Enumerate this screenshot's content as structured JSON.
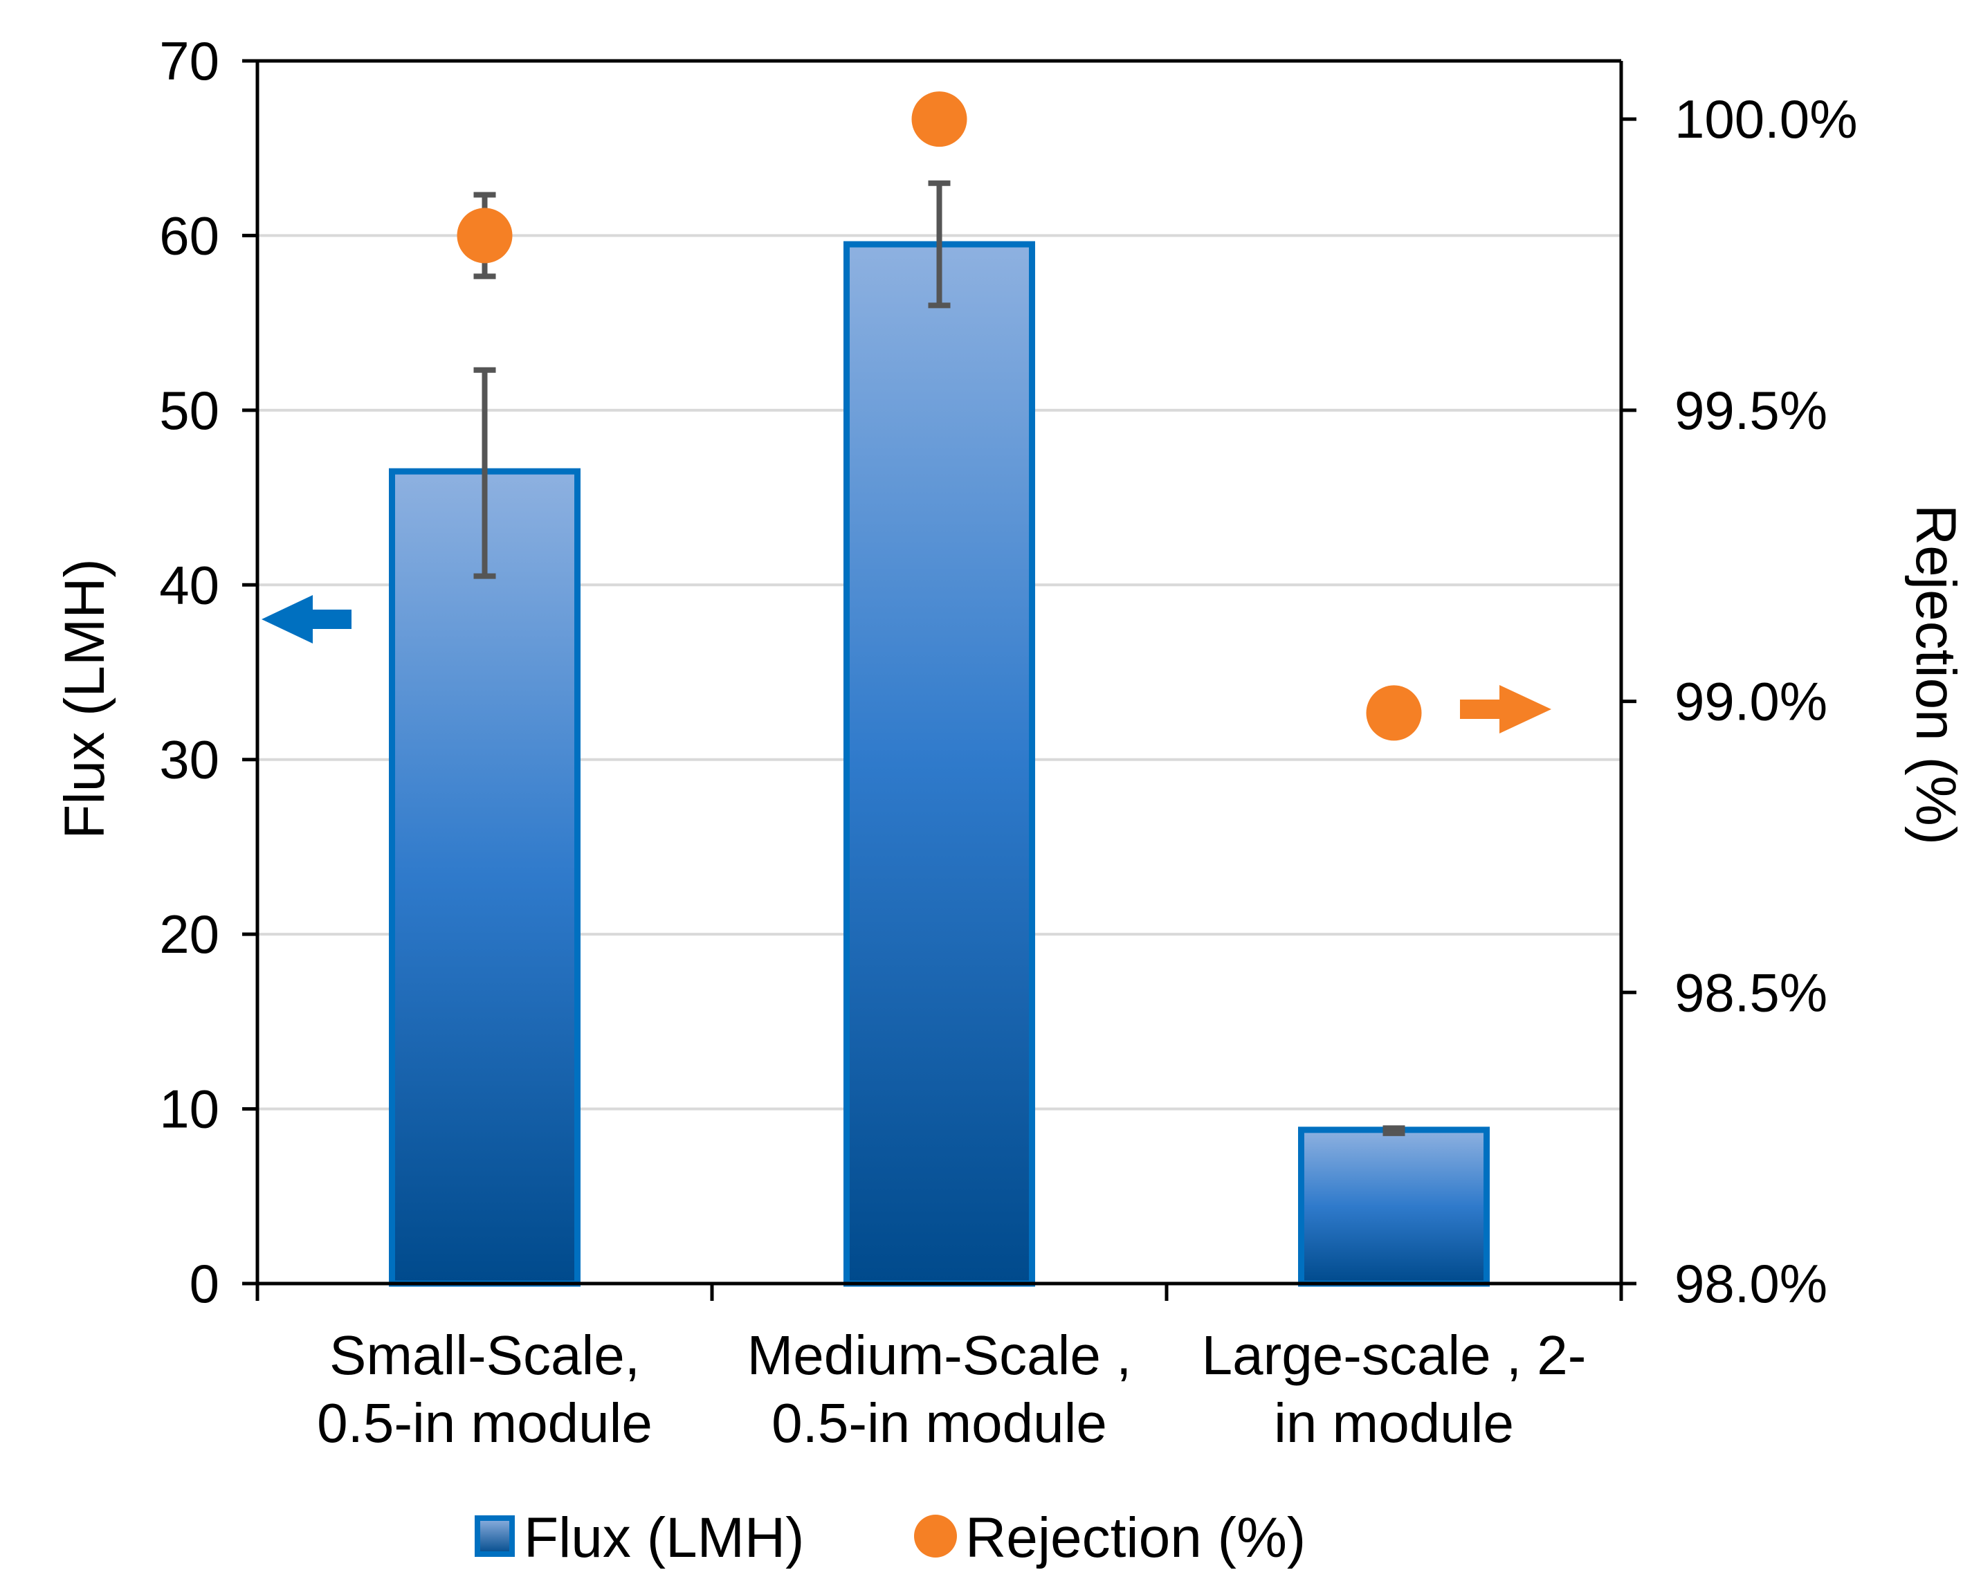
{
  "chart_data": {
    "type": "bar",
    "title": "",
    "categories": [
      [
        "Small-Scale,",
        "0.5-in module"
      ],
      [
        "Medium-Scale ,",
        "0.5-in module"
      ],
      [
        "Large-scale , 2-",
        "in module"
      ]
    ],
    "series": [
      {
        "name": "Flux (LMH)",
        "kind": "bar",
        "axis": "left",
        "values": [
          46.5,
          59.5,
          8.8
        ],
        "error": [
          [
            40.5,
            52.3
          ],
          [
            56.0,
            63.0
          ],
          [
            8.6,
            8.9
          ]
        ]
      },
      {
        "name": "Rejection (%)",
        "kind": "scatter",
        "axis": "right",
        "values": [
          99.8,
          100.0,
          98.98
        ],
        "error": [
          [
            99.73,
            99.87
          ],
          null,
          null
        ]
      }
    ],
    "ylabel": "Flux (LMH)",
    "y2label": "Rejection (%)",
    "ylim": [
      0,
      70
    ],
    "yticks": [
      0,
      10,
      20,
      30,
      40,
      50,
      60,
      70
    ],
    "ytick_labels": [
      "0",
      "10",
      "20",
      "30",
      "40",
      "50",
      "60",
      "70"
    ],
    "y2lim": [
      98.0,
      100.1
    ],
    "y2ticks": [
      98.0,
      98.5,
      99.0,
      99.5,
      100.0
    ],
    "y2tick_labels": [
      "98.0%",
      "98.5%",
      "99.0%",
      "99.5%",
      "100.0%"
    ],
    "grid": true,
    "legend_position": "bottom",
    "annotations": [
      {
        "type": "arrow",
        "direction": "left",
        "meaning": "Flux on left axis",
        "color": "#0070C0"
      },
      {
        "type": "arrow",
        "direction": "right",
        "meaning": "Rejection on right axis",
        "color": "#F58025"
      }
    ],
    "colors": {
      "bar_border": "#0070C0",
      "bar_top": "#8EB1E0",
      "bar_mid": "#2F7ACB",
      "bar_bottom": "#004A8C",
      "rejection": "#F58025",
      "error_bar": "#555555",
      "grid": "#D9D9D9",
      "axis": "#000000",
      "flux_arrow": "#0070C0",
      "rejection_arrow": "#F58025"
    }
  }
}
